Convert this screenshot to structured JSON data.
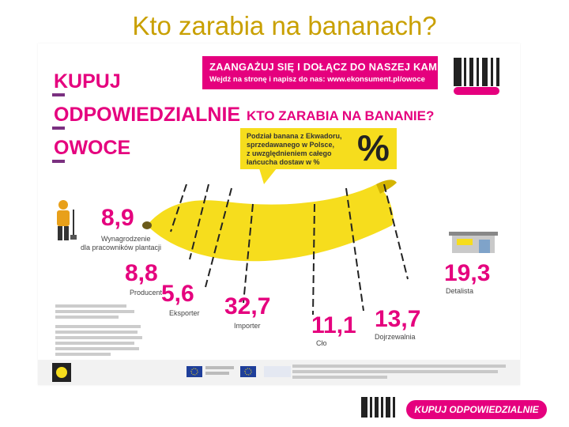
{
  "slide_title": "Kto zarabia na bananach?",
  "headline": {
    "line1": "KUPUJ",
    "line2": "ODPOWIEDZIALNIE",
    "line3": "OWOCE"
  },
  "campaign": {
    "line1": "ZAANGAŻUJ SIĘ I DOŁĄCZ DO NASZEJ KAMPANII!",
    "line2": "Wejdź na stronę i napisz do nas: www.ekonsument.pl/owoce"
  },
  "question": "KTO ZARABIA NA BANANIE?",
  "callout": {
    "line1": "Podział banana z Ekwadoru,",
    "line2": "sprzedawanego w Polsce,",
    "line3": "z uwzględnieniem całego",
    "line4": "łańcucha dostaw w %",
    "symbol": "%"
  },
  "shares": [
    {
      "value": "8,9",
      "label1": "Wynagrodzenie",
      "label2": "dla pracowników plantacji"
    },
    {
      "value": "8,8",
      "label1": "Producent"
    },
    {
      "value": "5,6",
      "label1": "Eksporter"
    },
    {
      "value": "32,7",
      "label1": "Importer"
    },
    {
      "value": "11,1",
      "label1": "Cło"
    },
    {
      "value": "13,7",
      "label1": "Dojrzewalnia"
    },
    {
      "value": "19,3",
      "label1": "Detalista"
    }
  ],
  "colors": {
    "accent": "#e5007e",
    "banana": "#f6dd1d",
    "title": "#c9a000"
  },
  "bottom_logo": {
    "label": "KUPUJ ODPOWIEDZIALNIE"
  },
  "icons": [
    "worker-icon",
    "store-icon",
    "barcode-logo-icon",
    "eu-flag-icon",
    "hand-logo-icon"
  ]
}
